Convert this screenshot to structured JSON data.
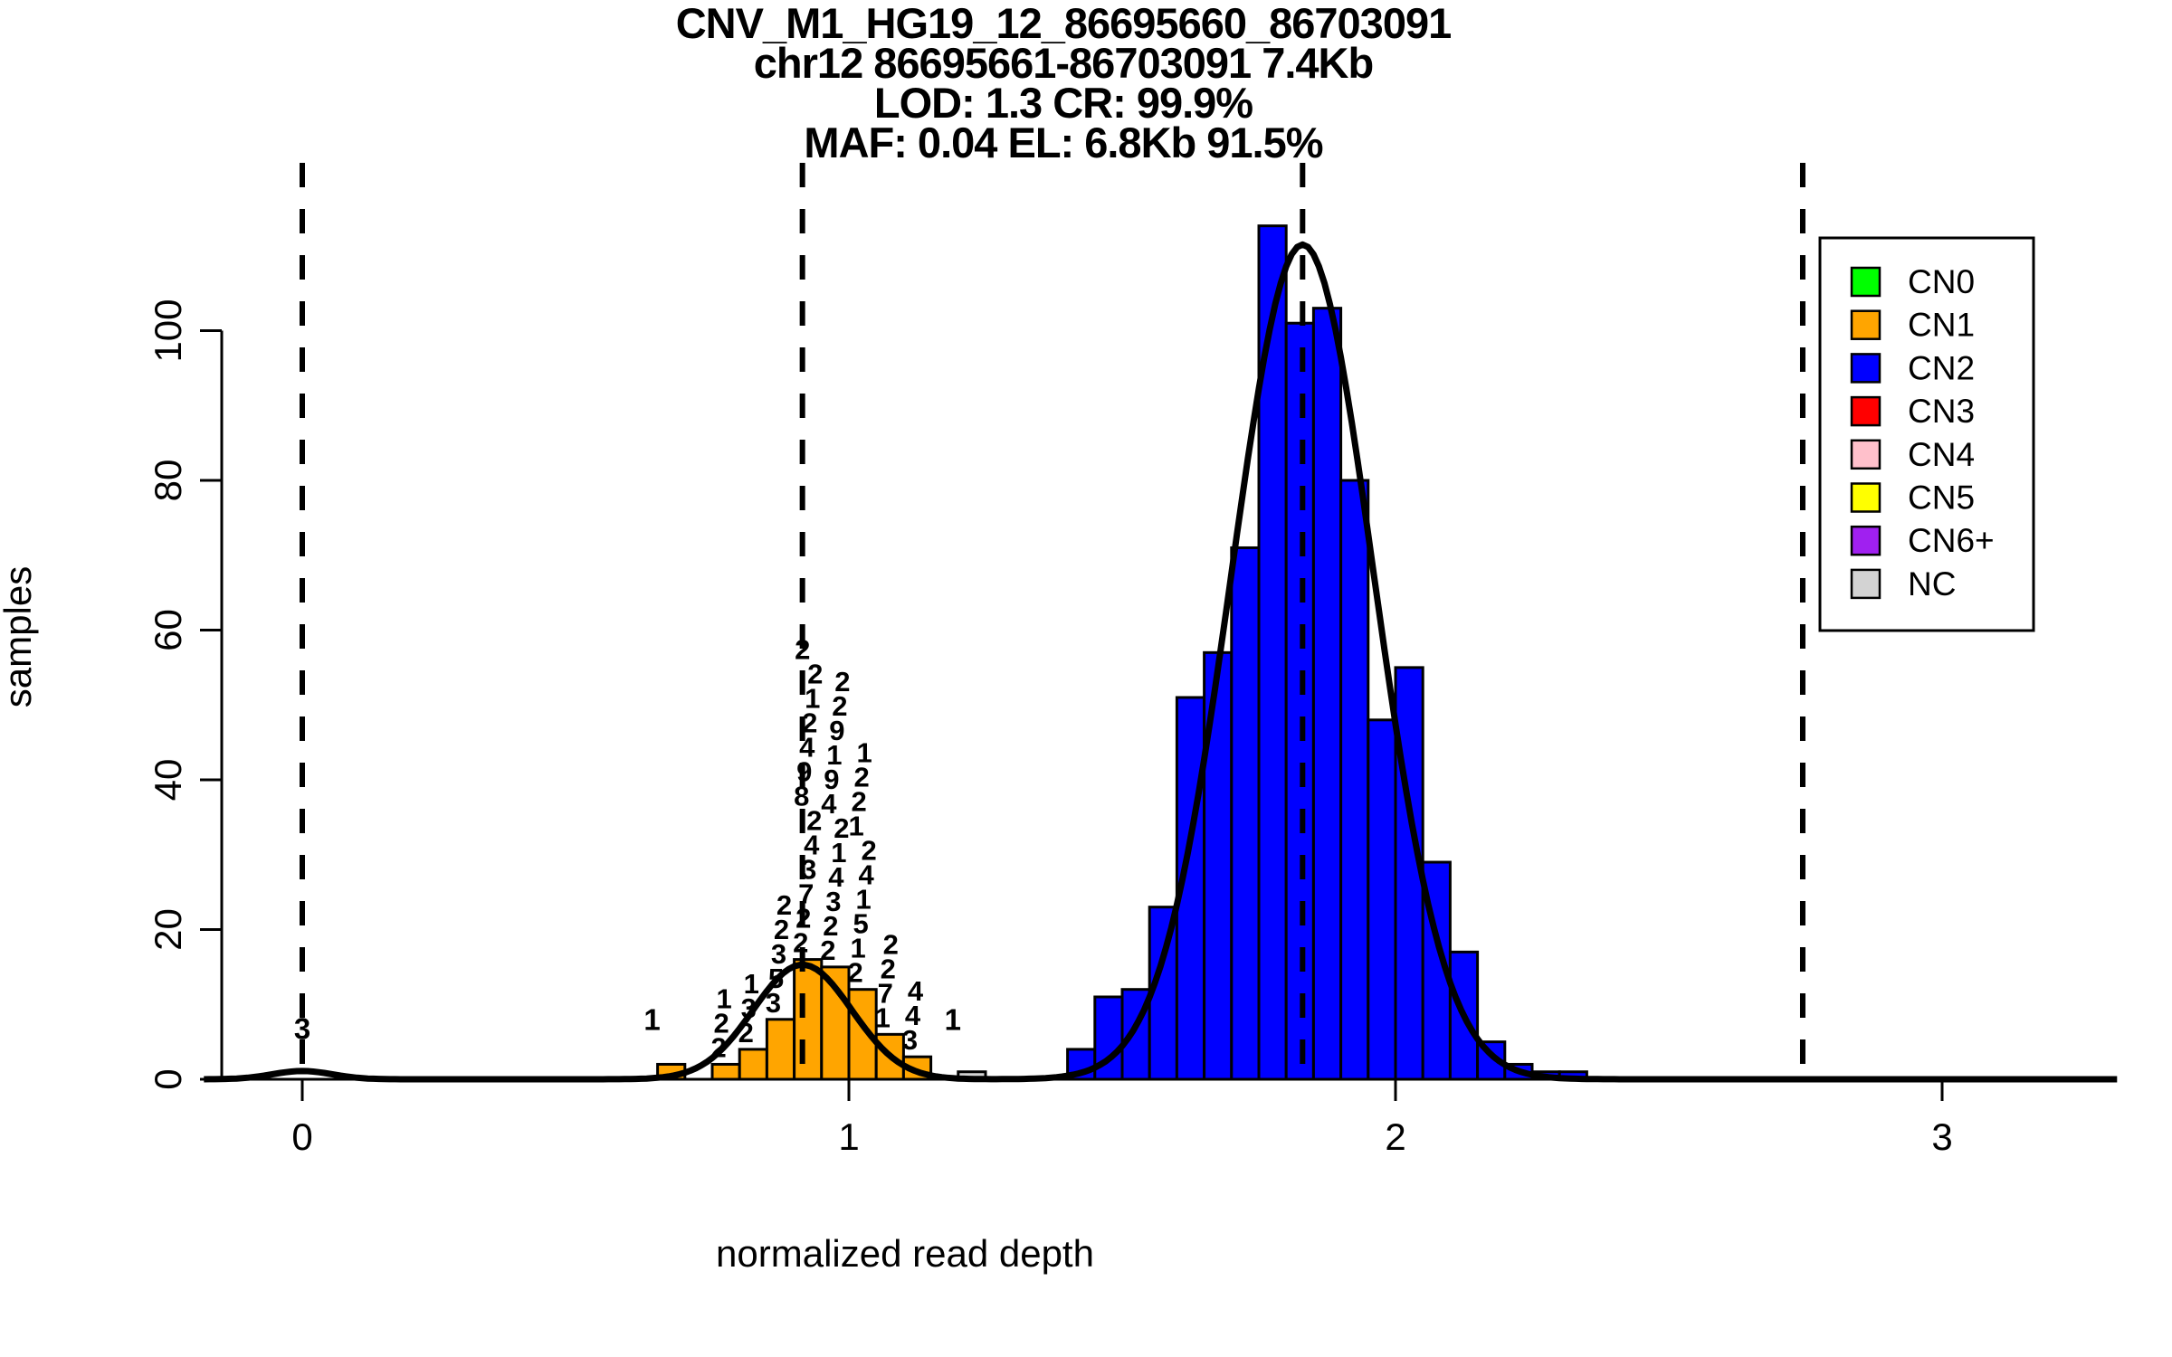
{
  "title_lines": [
    "CNV_M1_HG19_12_86695660_86703091",
    "chr12 86695661-86703091 7.4Kb",
    "LOD: 1.3 CR: 99.9%",
    "MAF: 0.04 EL: 6.8Kb 91.5%"
  ],
  "axes": {
    "x_label": "normalized read depth",
    "y_label": "samples",
    "x_ticks": [
      "0",
      "1",
      "2",
      "3"
    ],
    "x_tick_values": [
      0,
      1,
      2,
      3
    ],
    "y_ticks": [
      "0",
      "20",
      "40",
      "60",
      "80",
      "100"
    ],
    "y_tick_values": [
      0,
      20,
      40,
      60,
      80,
      100
    ]
  },
  "legend": {
    "items": [
      {
        "label": "CN0",
        "color": "#00FF00"
      },
      {
        "label": "CN1",
        "color": "#FFA500"
      },
      {
        "label": "CN2",
        "color": "#0000FF"
      },
      {
        "label": "CN3",
        "color": "#FF0000"
      },
      {
        "label": "CN4",
        "color": "#FFC0CB"
      },
      {
        "label": "CN5",
        "color": "#FFFF00"
      },
      {
        "label": "CN6+",
        "color": "#A020F0"
      },
      {
        "label": "NC",
        "color": "#D3D3D3"
      }
    ]
  },
  "chart_data": {
    "type": "bar",
    "subtype": "histogram-with-density",
    "title": "CNV_M1_HG19_12_86695660_86703091",
    "xlabel": "normalized read depth",
    "ylabel": "samples",
    "xlim": [
      -0.2,
      3.3
    ],
    "ylim": [
      0,
      115
    ],
    "grid": false,
    "legend_position": "top-right",
    "bin_width": 0.05,
    "series": [
      {
        "name": "CN1",
        "color": "#FFA500",
        "bars": [
          {
            "x0": 0.65,
            "count": 2,
            "labels": []
          },
          {
            "x0": 0.75,
            "count": 2,
            "labels": [
              "2",
              "2",
              "1"
            ]
          },
          {
            "x0": 0.8,
            "count": 4,
            "labels": [
              "2",
              "3",
              "1"
            ]
          },
          {
            "x0": 0.85,
            "count": 8,
            "labels": [
              "3",
              "5",
              "3",
              "2",
              "2"
            ]
          },
          {
            "x0": 0.9,
            "count": 16,
            "labels": [
              "2",
              "2",
              "7",
              "3",
              "4",
              "2",
              "8",
              "9",
              "4",
              "2",
              "1",
              "2",
              "2"
            ]
          },
          {
            "x0": 0.95,
            "count": 15,
            "labels": [
              "2",
              "2",
              "3",
              "4",
              "1",
              "2",
              "4",
              "9",
              "1",
              "9",
              "2",
              "2"
            ]
          },
          {
            "x0": 1.0,
            "count": 12,
            "labels": [
              "2",
              "1",
              "5",
              "1",
              "4",
              "2",
              "1",
              "2",
              "2",
              "1"
            ]
          },
          {
            "x0": 1.05,
            "count": 6,
            "labels": [
              "1",
              "7",
              "2",
              "2"
            ]
          },
          {
            "x0": 1.1,
            "count": 3,
            "labels": [
              "3",
              "4",
              "4"
            ]
          }
        ]
      },
      {
        "name": "CN2",
        "color": "#0000FF",
        "bars": [
          {
            "x0": 1.4,
            "count": 4,
            "labels": []
          },
          {
            "x0": 1.45,
            "count": 11,
            "labels": []
          },
          {
            "x0": 1.5,
            "count": 12,
            "labels": []
          },
          {
            "x0": 1.55,
            "count": 23,
            "labels": []
          },
          {
            "x0": 1.6,
            "count": 51,
            "labels": []
          },
          {
            "x0": 1.65,
            "count": 57,
            "labels": []
          },
          {
            "x0": 1.7,
            "count": 71,
            "labels": []
          },
          {
            "x0": 1.75,
            "count": 114,
            "labels": []
          },
          {
            "x0": 1.8,
            "count": 101,
            "labels": []
          },
          {
            "x0": 1.85,
            "count": 103,
            "labels": []
          },
          {
            "x0": 1.9,
            "count": 80,
            "labels": []
          },
          {
            "x0": 1.95,
            "count": 48,
            "labels": []
          },
          {
            "x0": 2.0,
            "count": 55,
            "labels": []
          },
          {
            "x0": 2.05,
            "count": 29,
            "labels": []
          },
          {
            "x0": 2.1,
            "count": 17,
            "labels": []
          },
          {
            "x0": 2.15,
            "count": 5,
            "labels": []
          },
          {
            "x0": 2.2,
            "count": 2,
            "labels": []
          },
          {
            "x0": 2.25,
            "count": 1,
            "labels": []
          },
          {
            "x0": 2.3,
            "count": 1,
            "labels": []
          }
        ]
      },
      {
        "name": "NC",
        "color": "#D3D3D3",
        "bars": [
          {
            "x0": 1.2,
            "count": 1,
            "labels": []
          }
        ]
      }
    ],
    "floating_labels": [
      {
        "x": 0.0,
        "count_y": 5.4,
        "text": "3"
      },
      {
        "x": 0.64,
        "count_y": 6.6,
        "text": "1"
      },
      {
        "x": 1.19,
        "count_y": 6.6,
        "text": "1"
      }
    ],
    "density_curve": {
      "color": "#000000",
      "stroke_width": 7,
      "gaussians": [
        {
          "mu": 0.0,
          "sigma": 0.055,
          "amp": 1.1
        },
        {
          "mu": 0.915,
          "sigma": 0.09,
          "amp": 15.3
        },
        {
          "mu": 1.83,
          "sigma": 0.13,
          "amp": 111.5
        }
      ]
    },
    "dashed_lines": {
      "x_values": [
        0.0,
        0.915,
        1.83,
        2.745
      ],
      "color": "#000000"
    }
  }
}
